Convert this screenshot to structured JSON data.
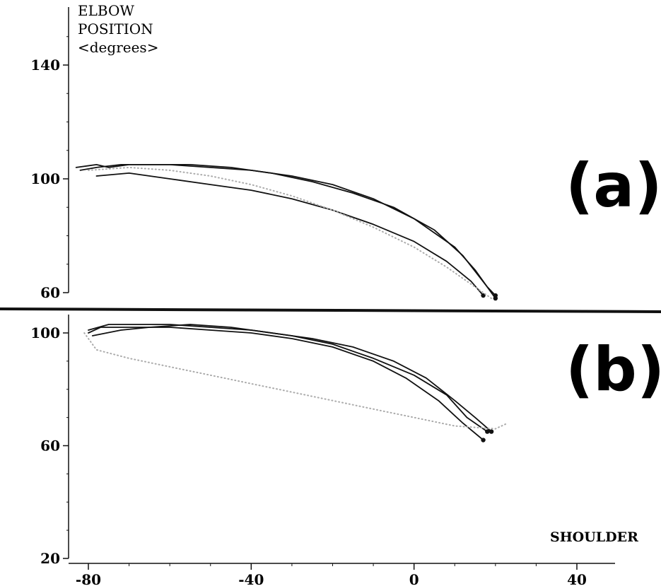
{
  "figure": {
    "ylabel_lines": [
      "ELBOW",
      "POSITION",
      "<degrees>"
    ],
    "xlabel": "SHOULDER",
    "separator": true
  },
  "chart_data": [
    {
      "type": "line",
      "panel_label": "(a)",
      "xlabel": "SHOULDER",
      "ylabel": "ELBOW POSITION <degrees>",
      "xlim": [
        -87,
        50
      ],
      "ylim": [
        60,
        150
      ],
      "x_ticks": [],
      "y_ticks": [
        60,
        100,
        140
      ],
      "grid": false,
      "series": [
        {
          "color": "#111111",
          "style": "solid",
          "points": [
            [
              -83,
              104
            ],
            [
              -78,
              105
            ],
            [
              -75,
              104
            ],
            [
              -70,
              105
            ],
            [
              -60,
              105
            ],
            [
              -50,
              104
            ],
            [
              -40,
              103
            ],
            [
              -30,
              101
            ],
            [
              -20,
              98
            ],
            [
              -10,
              93
            ],
            [
              0,
              86
            ],
            [
              10,
              76
            ],
            [
              15,
              68
            ],
            [
              20,
              58
            ]
          ]
        },
        {
          "color": "#111111",
          "style": "solid",
          "points": [
            [
              -82,
              103
            ],
            [
              -78,
              104
            ],
            [
              -72,
              105
            ],
            [
              -65,
              105
            ],
            [
              -55,
              105
            ],
            [
              -45,
              104
            ],
            [
              -35,
              102
            ],
            [
              -25,
              99
            ],
            [
              -15,
              95
            ],
            [
              -5,
              90
            ],
            [
              5,
              82
            ],
            [
              12,
              73
            ],
            [
              18,
              62
            ],
            [
              20,
              59
            ]
          ]
        },
        {
          "color": "#111111",
          "style": "solid",
          "points": [
            [
              -78,
              101
            ],
            [
              -70,
              102
            ],
            [
              -60,
              100
            ],
            [
              -50,
              98
            ],
            [
              -40,
              96
            ],
            [
              -30,
              93
            ],
            [
              -20,
              89
            ],
            [
              -10,
              84
            ],
            [
              0,
              78
            ],
            [
              8,
              71
            ],
            [
              14,
              64
            ],
            [
              17,
              59
            ]
          ]
        },
        {
          "color": "#aaaaaa",
          "style": "dotted",
          "points": [
            [
              -80,
              103
            ],
            [
              -70,
              104
            ],
            [
              -60,
              103
            ],
            [
              -50,
              101
            ],
            [
              -40,
              98
            ],
            [
              -30,
              94
            ],
            [
              -20,
              89
            ],
            [
              -10,
              83
            ],
            [
              0,
              76
            ],
            [
              8,
              69
            ],
            [
              15,
              62
            ],
            [
              19,
              58
            ]
          ]
        }
      ]
    },
    {
      "type": "line",
      "panel_label": "(b)",
      "xlabel": "SHOULDER",
      "ylabel": "ELBOW POSITION <degrees>",
      "xlim": [
        -87,
        50
      ],
      "ylim": [
        20,
        104
      ],
      "x_ticks": [
        -80,
        -40,
        0,
        40
      ],
      "y_ticks": [
        20,
        60,
        100
      ],
      "grid": false,
      "series": [
        {
          "color": "#111111",
          "style": "solid",
          "points": [
            [
              -80,
              101
            ],
            [
              -75,
              103
            ],
            [
              -70,
              103
            ],
            [
              -60,
              103
            ],
            [
              -50,
              102
            ],
            [
              -40,
              101
            ],
            [
              -30,
              99
            ],
            [
              -20,
              96
            ],
            [
              -10,
              91
            ],
            [
              0,
              85
            ],
            [
              8,
              78
            ],
            [
              13,
              70
            ],
            [
              18,
              65
            ]
          ]
        },
        {
          "color": "#111111",
          "style": "solid",
          "points": [
            [
              -80,
              100
            ],
            [
              -77,
              102
            ],
            [
              -70,
              102
            ],
            [
              -60,
              102
            ],
            [
              -50,
              101
            ],
            [
              -40,
              100
            ],
            [
              -30,
              98
            ],
            [
              -20,
              95
            ],
            [
              -10,
              90
            ],
            [
              -2,
              84
            ],
            [
              6,
              76
            ],
            [
              12,
              68
            ],
            [
              17,
              62
            ]
          ]
        },
        {
          "color": "#111111",
          "style": "solid",
          "points": [
            [
              -79,
              99
            ],
            [
              -72,
              101
            ],
            [
              -65,
              102
            ],
            [
              -55,
              103
            ],
            [
              -45,
              102
            ],
            [
              -35,
              100
            ],
            [
              -25,
              98
            ],
            [
              -15,
              95
            ],
            [
              -5,
              90
            ],
            [
              3,
              84
            ],
            [
              10,
              76
            ],
            [
              15,
              70
            ],
            [
              19,
              65
            ]
          ]
        },
        {
          "color": "#aaaaaa",
          "style": "dotted",
          "points": [
            [
              -81,
              100
            ],
            [
              -78,
              94
            ],
            [
              -70,
              91
            ],
            [
              -60,
              88
            ],
            [
              -50,
              85
            ],
            [
              -40,
              82
            ],
            [
              -30,
              79
            ],
            [
              -20,
              76
            ],
            [
              -10,
              73
            ],
            [
              0,
              70
            ],
            [
              10,
              67
            ],
            [
              20,
              66
            ],
            [
              23,
              68
            ]
          ]
        }
      ]
    }
  ]
}
